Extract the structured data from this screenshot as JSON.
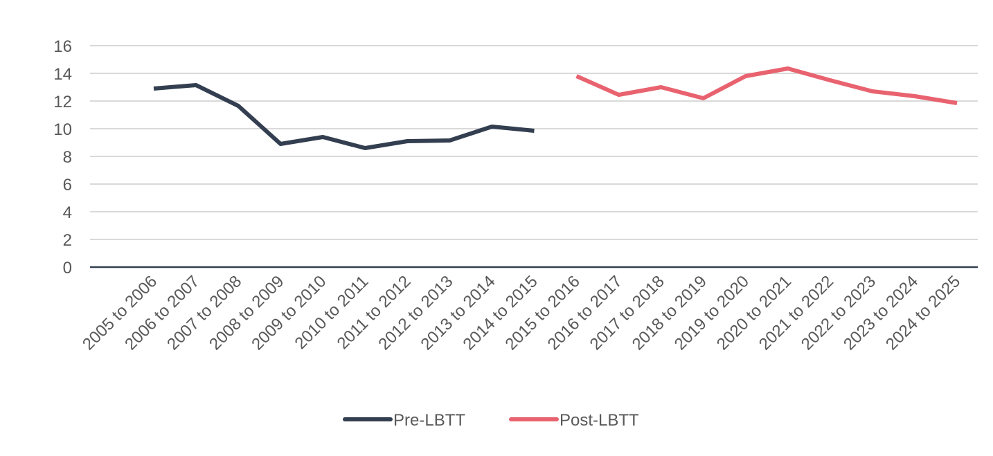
{
  "chart_data": {
    "type": "line",
    "categories": [
      "2005 to 2006",
      "2006 to 2007",
      "2007 to 2008",
      "2008 to 2009",
      "2009 to 2010",
      "2010 to 2011",
      "2011 to 2012",
      "2012 to 2013",
      "2013 to 2014",
      "2014 to 2015",
      "2015 to 2016",
      "2016 to 2017",
      "2017 to 2018",
      "2018 to 2019",
      "2019 to 2020",
      "2020 to 2021",
      "2021 to 2022",
      "2022 to 2023",
      "2023 to 2024",
      "2024 to 2025"
    ],
    "series": [
      {
        "name": "Pre-LBTT",
        "color": "#333f50",
        "values": [
          12.9,
          13.15,
          11.65,
          8.9,
          9.4,
          8.6,
          9.1,
          9.15,
          10.15,
          9.85,
          null,
          null,
          null,
          null,
          null,
          null,
          null,
          null,
          null,
          null
        ]
      },
      {
        "name": "Post-LBTT",
        "color": "#e8636f",
        "values": [
          null,
          null,
          null,
          null,
          null,
          null,
          null,
          null,
          null,
          null,
          13.8,
          12.45,
          13.0,
          12.2,
          13.8,
          14.35,
          13.5,
          12.7,
          12.35,
          11.85
        ]
      }
    ],
    "ylim": [
      0,
      16
    ],
    "yticks": [
      0,
      2,
      4,
      6,
      8,
      10,
      12,
      14,
      16
    ],
    "grid": true,
    "legend": "bottom"
  }
}
